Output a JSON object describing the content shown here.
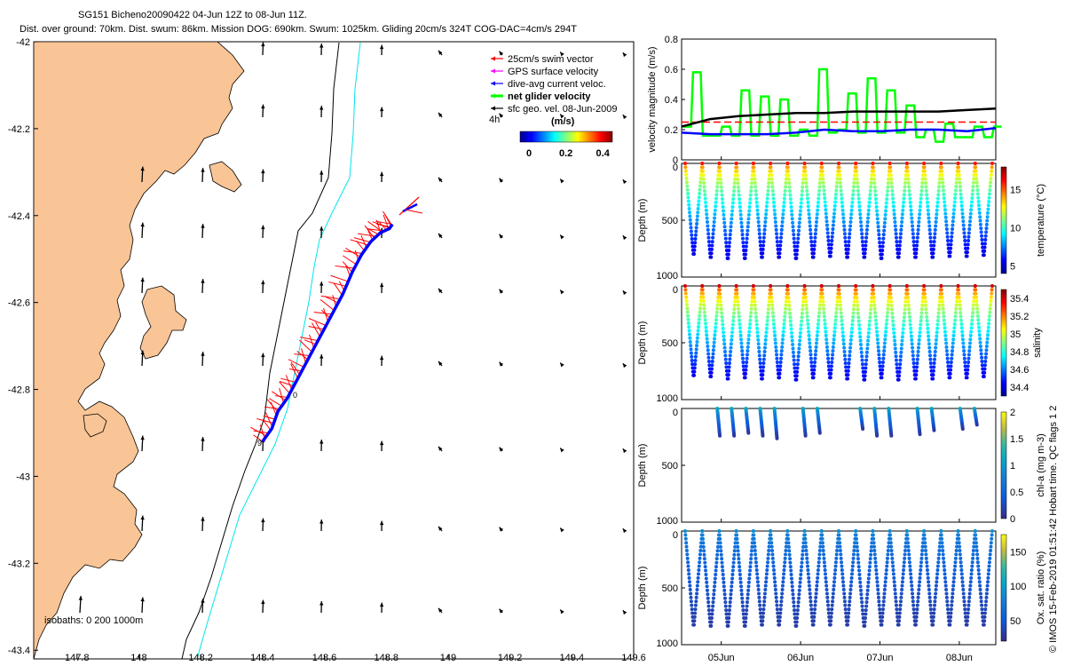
{
  "header": {
    "line1": "SG151 Bicheno20090422 04-Jun 12Z to 08-Jun 11Z.",
    "line2": "Dist. over ground: 70km. Dist. swum: 86km. Mission DOG: 690km. Swum: 1025km. Gliding 20cm/s 324T COG-DAC=4cm/s 294T"
  },
  "colors": {
    "land": "#F9C596",
    "isobath200": "#000000",
    "isobath1000": "#00E5EE",
    "swim": "#FF0000",
    "gps": "#FF00FF",
    "dac": "#0000FF",
    "net": "#00FF00",
    "geo": "#000000"
  },
  "map": {
    "legend": [
      {
        "label": "25cm/s swim vector",
        "color": "#FF0000"
      },
      {
        "label": "GPS surface velocity",
        "color": "#FF00FF"
      },
      {
        "label": "dive-avg current veloc.",
        "color": "#0000FF"
      },
      {
        "label": "net glider velocity",
        "color": "#00FF00"
      },
      {
        "label": "sfc geo. vel. 08-Jun-2009",
        "color": "#000000"
      }
    ],
    "time_step_label": "4h",
    "colorbar_title": "(m/s)",
    "colorbar_ticks": [
      "0",
      "0.2",
      "0.4"
    ],
    "isobaths_label": "isobaths:  0   200  1000m",
    "start_label": "9",
    "end_label": "0"
  },
  "chart_data": [
    {
      "type": "scatter",
      "name": "glider track map",
      "xlim": [
        147.66,
        149.6
      ],
      "ylim": [
        -43.42,
        -42.0
      ],
      "xticks": [
        "147.8",
        "148",
        "148.2",
        "148.4",
        "148.6",
        "148.8",
        "149",
        "149.2",
        "149.4",
        "149.6"
      ],
      "yticks": [
        "-42",
        "-42.2",
        "-42.4",
        "-42.6",
        "-42.8",
        "-43",
        "-43.2",
        "-43.4"
      ],
      "track_lon": [
        148.4,
        148.43,
        148.45,
        148.48,
        148.51,
        148.54,
        148.57,
        148.6,
        148.63,
        148.66,
        148.69,
        148.72,
        148.75,
        148.78,
        148.81,
        148.82
      ],
      "track_lat": [
        -42.92,
        -42.89,
        -42.85,
        -42.82,
        -42.78,
        -42.74,
        -42.7,
        -42.66,
        -42.62,
        -42.58,
        -42.53,
        -42.49,
        -42.46,
        -42.44,
        -42.43,
        -42.42
      ]
    },
    {
      "type": "line",
      "name": "velocity magnitude",
      "ylabel": "velocity magnitude (m/s)",
      "ylim": [
        0,
        0.8
      ],
      "yticks": [
        "0",
        "0.2",
        "0.4",
        "0.6",
        "0.8"
      ],
      "series": [
        {
          "name": "net glider velocity",
          "color": "#00FF00",
          "values": [
            0.22,
            0.58,
            0.16,
            0.16,
            0.22,
            0.16,
            0.46,
            0.16,
            0.42,
            0.16,
            0.4,
            0.16,
            0.2,
            0.16,
            0.6,
            0.18,
            0.2,
            0.44,
            0.18,
            0.54,
            0.18,
            0.46,
            0.18,
            0.36,
            0.15,
            0.2,
            0.12,
            0.24,
            0.15,
            0.15,
            0.22,
            0.15,
            0.22
          ]
        },
        {
          "name": "swim 25cm/s",
          "color": "#FF0000",
          "dashed": true,
          "values": [
            0.25,
            0.25
          ]
        },
        {
          "name": "dive-avg current",
          "color": "#0000FF",
          "values": [
            0.18,
            0.17,
            0.17,
            0.17,
            0.18,
            0.2,
            0.19,
            0.19,
            0.2,
            0.2,
            0.19,
            0.21
          ]
        },
        {
          "name": "sfc geo",
          "color": "#000000",
          "values": [
            0.22,
            0.27,
            0.29,
            0.3,
            0.31,
            0.31,
            0.32,
            0.32,
            0.32,
            0.32,
            0.33,
            0.34
          ]
        }
      ]
    },
    {
      "type": "scatter",
      "name": "temperature",
      "ylabel": "Depth (m)",
      "cbar_label": "temperature (°C)",
      "ylim": [
        0,
        1000
      ],
      "yticks": [
        "0",
        "500",
        "1000"
      ],
      "cticks": [
        "5",
        "10",
        "15"
      ],
      "crange": [
        4,
        18
      ],
      "n_dives": 18,
      "max_depth": [
        830,
        860,
        870,
        870,
        860,
        860,
        870,
        860,
        850,
        860,
        860,
        870,
        860,
        860,
        860,
        850,
        850,
        840
      ],
      "surface_value": 16,
      "deep_value": 5
    },
    {
      "type": "scatter",
      "name": "salinity",
      "ylabel": "Depth (m)",
      "cbar_label": "salinity",
      "ylim": [
        0,
        1000
      ],
      "yticks": [
        "0",
        "500",
        "1000"
      ],
      "cticks": [
        "34.4",
        "34.6",
        "34.8",
        "35",
        "35.2",
        "35.4"
      ],
      "crange": [
        34.3,
        35.5
      ],
      "n_dives": 18,
      "max_depth": [
        820,
        830,
        850,
        840,
        850,
        840,
        860,
        840,
        840,
        850,
        860,
        840,
        860,
        850,
        850,
        840,
        840,
        830
      ],
      "surface_value": 35.4,
      "deep_value": 34.4
    },
    {
      "type": "scatter",
      "name": "chl-a",
      "ylabel": "Depth (m)",
      "cbar_label": "chl-a (mg m-3)",
      "ylim": [
        0,
        1000
      ],
      "yticks": [
        "0",
        "500",
        "1000"
      ],
      "cticks": [
        "0",
        "0.5",
        "1",
        "1.5",
        "2"
      ],
      "crange": [
        0,
        2
      ],
      "profiles_at": [
        2,
        3,
        4,
        5,
        6,
        8,
        9,
        12,
        13,
        14,
        16,
        17,
        19,
        20
      ],
      "max_depth": [
        250,
        250,
        220,
        240,
        270,
        250,
        220,
        180,
        250,
        240,
        230,
        200,
        180,
        150
      ],
      "surface_value": 1.2,
      "deep_value": 0.1
    },
    {
      "type": "scatter",
      "name": "oxygen",
      "ylabel": "Depth (m)",
      "cbar_label": "Ox. sat. ratio (%)",
      "ylim": [
        0,
        1000
      ],
      "yticks": [
        "0",
        "500",
        "1000"
      ],
      "cticks": [
        "50",
        "100",
        "150"
      ],
      "crange": [
        20,
        175
      ],
      "n_dives": 18,
      "max_depth": [
        860,
        870,
        870,
        870,
        860,
        860,
        870,
        860,
        860,
        860,
        870,
        860,
        860,
        860,
        860,
        860,
        860,
        860
      ],
      "surface_value": 90,
      "deep_value": 30
    },
    {
      "type": "axis",
      "name": "time axis",
      "xticks": [
        "05Jun",
        "06Jun",
        "07Jun",
        "08Jun"
      ]
    }
  ],
  "side_label": "© IMOS 15-Feb-2019 01:51:42 Hobart time. QC flags 1  2"
}
